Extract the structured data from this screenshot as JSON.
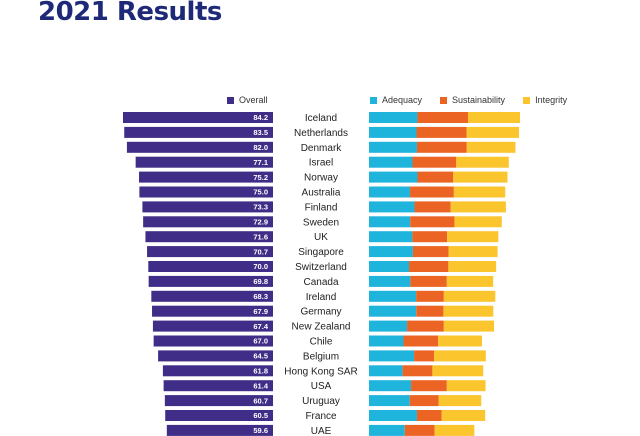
{
  "title": "2021 Results",
  "legend_left": [
    {
      "label": "Overall",
      "color": "#3f2d87",
      "icon": "square-swatch"
    }
  ],
  "legend_right": [
    {
      "label": "Adequacy",
      "color": "#1fb4dc",
      "icon": "square-swatch"
    },
    {
      "label": "Sustainability",
      "color": "#ec6424",
      "icon": "square-swatch"
    },
    {
      "label": "Integrity",
      "color": "#fbc52e",
      "icon": "square-swatch"
    }
  ],
  "chart_data": [
    {
      "type": "bar",
      "orientation": "horizontal",
      "series": [
        {
          "name": "Overall",
          "values": [
            84.2,
            83.5,
            82.0,
            77.1,
            75.2,
            75.0,
            73.3,
            72.9,
            71.6,
            70.7,
            70.0,
            69.8,
            68.3,
            67.9,
            67.4,
            67.0,
            64.5,
            61.8,
            61.4,
            60.7,
            60.5,
            59.6
          ]
        }
      ],
      "categories": [
        "Iceland",
        "Netherlands",
        "Denmark",
        "Israel",
        "Norway",
        "Australia",
        "Finland",
        "Sweden",
        "UK",
        "Singapore",
        "Switzerland",
        "Canada",
        "Ireland",
        "Germany",
        "New Zealand",
        "Chile",
        "Belgium",
        "Hong Kong SAR",
        "USA",
        "Uruguay",
        "France",
        "UAE"
      ],
      "data_labels": [
        "84.2",
        "83.5",
        "82.0",
        "77.1",
        "75.2",
        "75.0",
        "73.3",
        "72.9",
        "71.6",
        "70.7",
        "70.0",
        "69.8",
        "68.3",
        "67.9",
        "67.4",
        "67.0",
        "64.5",
        "61.8",
        "61.4",
        "60.7",
        "60.5",
        "59.6"
      ],
      "direction": "bars extend leftward from the country labels",
      "color": "#3f2d87"
    },
    {
      "type": "bar",
      "orientation": "horizontal",
      "stacked": true,
      "categories": [
        "Iceland",
        "Netherlands",
        "Denmark",
        "Israel",
        "Norway",
        "Australia",
        "Finland",
        "Sweden",
        "UK",
        "Singapore",
        "Switzerland",
        "Canada",
        "Ireland",
        "Germany",
        "New Zealand",
        "Chile",
        "Belgium",
        "Hong Kong SAR",
        "USA",
        "Uruguay",
        "France",
        "UAE"
      ],
      "series": [
        {
          "name": "Adequacy",
          "color": "#1fb4dc",
          "values": [
            81.3,
            79.7,
            80.5,
            73.0,
            81.4,
            68.7,
            76.3,
            69.1,
            72.8,
            73.7,
            67.2,
            69.4,
            79.1,
            79.3,
            63.9,
            57.9,
            75.6,
            56.4,
            70.6,
            68.4,
            80.5,
            60.0
          ]
        },
        {
          "name": "Sustainability",
          "color": "#ec6424",
          "values": [
            84.8,
            84.0,
            83.6,
            73.5,
            60.0,
            73.7,
            60.8,
            74.3,
            58.3,
            59.8,
            66.0,
            61.2,
            46.5,
            45.6,
            61.7,
            58.1,
            33.5,
            50.0,
            60.0,
            48.3,
            41.5,
            50.0
          ]
        },
        {
          "name": "Integrity",
          "color": "#fbc52e",
          "values": [
            87.3,
            88.1,
            81.7,
            88.1,
            91.0,
            86.2,
            92.7,
            79.4,
            85.9,
            82.3,
            80.1,
            77.8,
            86.4,
            83.7,
            84.2,
            73.6,
            86.9,
            85.3,
            65.0,
            71.7,
            73.0,
            66.8
          ]
        }
      ]
    }
  ]
}
